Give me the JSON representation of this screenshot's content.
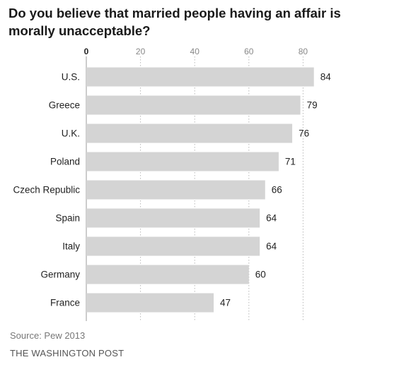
{
  "title": "Do you believe that married people having an affair is morally unacceptable?",
  "source": "Source: Pew 2013",
  "brand": "THE WASHINGTON POST",
  "colors": {
    "bar": "#d4d4d4",
    "text": "#222222",
    "grid": "#b8b8b8",
    "tick": "#888888"
  },
  "chart_data": {
    "type": "bar",
    "orientation": "horizontal",
    "title": "Do you believe that married people having an affair is morally unacceptable?",
    "xlim": [
      0,
      84
    ],
    "xticks": [
      0,
      20,
      40,
      60,
      80
    ],
    "grid": true,
    "categories": [
      "U.S.",
      "Greece",
      "U.K.",
      "Poland",
      "Czech Republic",
      "Spain",
      "Italy",
      "Germany",
      "France"
    ],
    "values": [
      84,
      79,
      76,
      71,
      66,
      64,
      64,
      60,
      47
    ]
  }
}
